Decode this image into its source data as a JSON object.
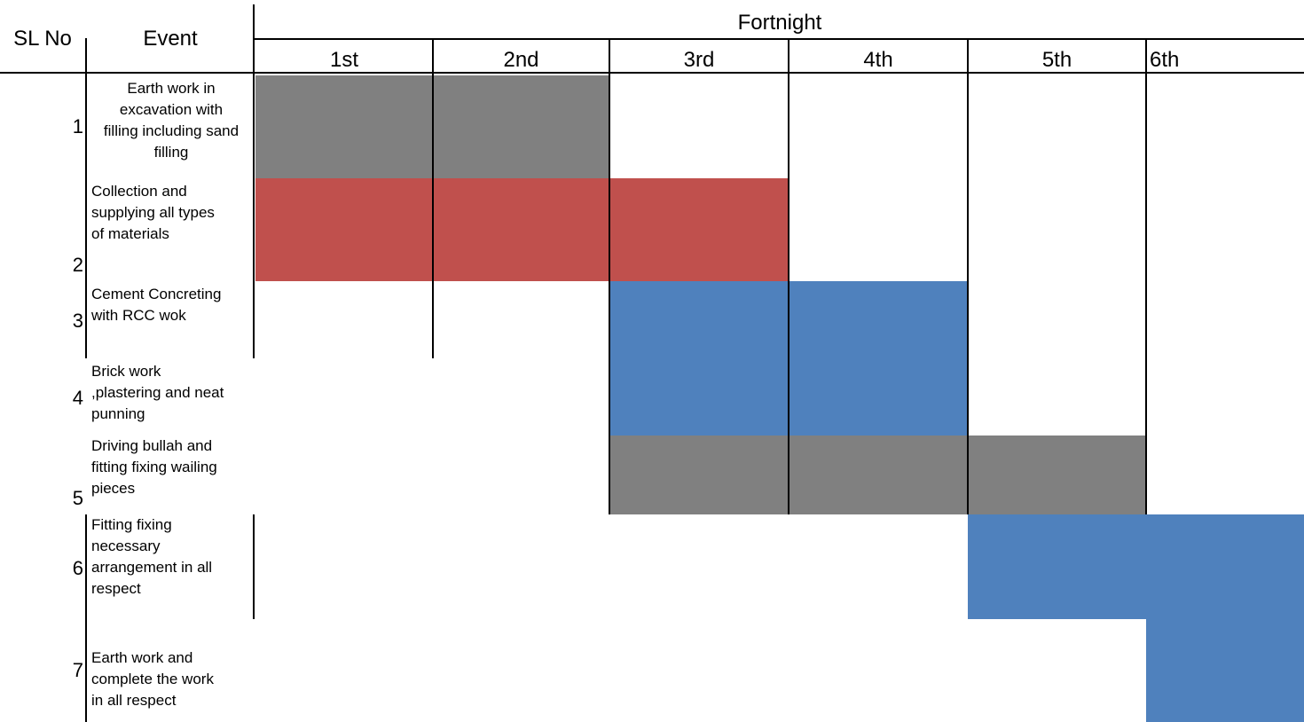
{
  "chart_data": {
    "type": "gantt",
    "title": "",
    "header": {
      "sl_no_label": "SL No",
      "event_label": "Event",
      "period_group_label": "Fortnight"
    },
    "periods": [
      "1st",
      "2nd",
      "3rd",
      "4th",
      "5th",
      "6th"
    ],
    "tasks": [
      {
        "sl": "1",
        "event": "Earth work in excavation with filling including sand filling",
        "lines": [
          "Earth work in",
          "excavation with",
          "filling including sand",
          "filling"
        ],
        "start": 1,
        "end": 2,
        "color": "#808080"
      },
      {
        "sl": "2",
        "event": "Collection and supplying all types of materials",
        "lines": [
          "Collection and",
          "supplying all types",
          "of materials"
        ],
        "start": 1,
        "end": 3,
        "color": "#c0504d"
      },
      {
        "sl": "3",
        "event": "Cement Concreting with RCC wok",
        "lines": [
          "Cement Concreting",
          "with RCC wok"
        ],
        "start": 3,
        "end": 4,
        "color": "#4f81bd"
      },
      {
        "sl": "4",
        "event": "Brick work ,plastering and neat punning",
        "lines": [
          "Brick work",
          ",plastering and neat",
          "punning"
        ],
        "start": 3,
        "end": 4,
        "color": "#4f81bd"
      },
      {
        "sl": "5",
        "event": "Driving bullah and fitting fixing wailing pieces",
        "lines": [
          "Driving bullah and",
          "fitting fixing wailing",
          "pieces"
        ],
        "start": 3,
        "end": 5,
        "color": "#808080"
      },
      {
        "sl": "6",
        "event": "Fitting fixing necessary arrangement in all respect",
        "lines": [
          "Fitting fixing",
          "necessary",
          "arrangement in all",
          "respect"
        ],
        "start": 5,
        "end": 6,
        "color": "#4f81bd"
      },
      {
        "sl": "7",
        "event": "Earth work and complete the work in all respect",
        "lines": [
          "Earth work and",
          "complete the work",
          "in all respect"
        ],
        "start": 6,
        "end": 6,
        "color": "#4f81bd"
      }
    ]
  }
}
